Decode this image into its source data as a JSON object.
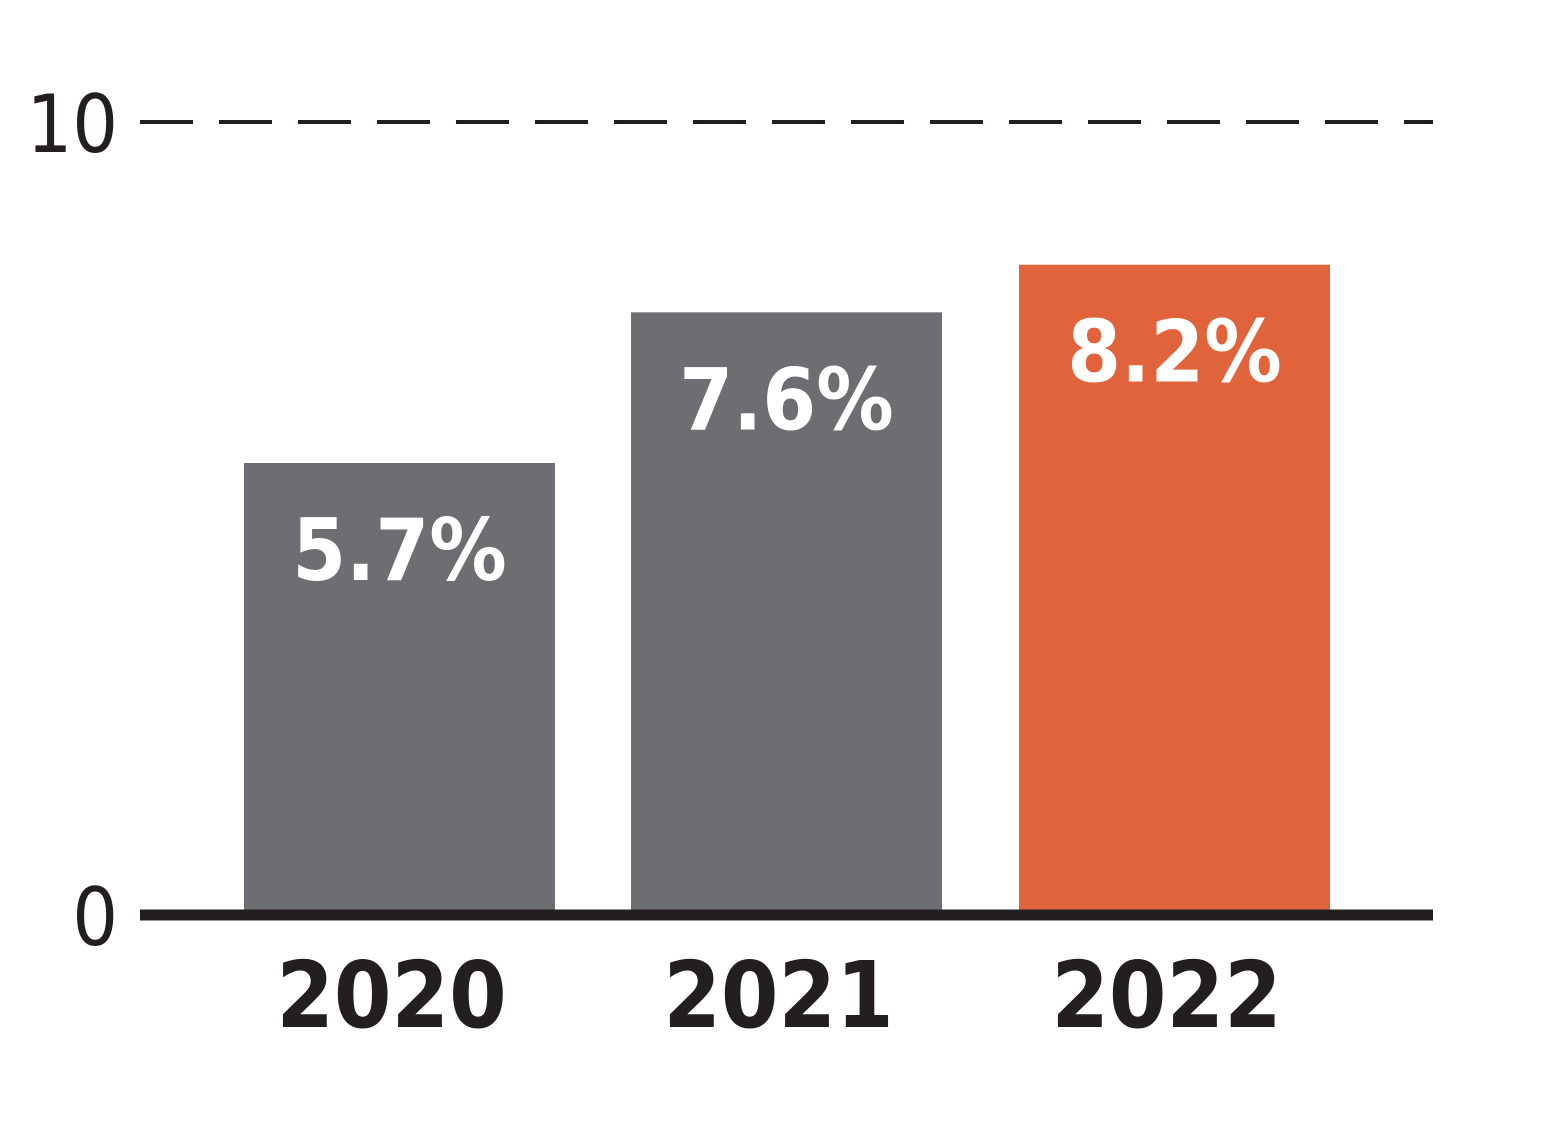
{
  "chart_data": {
    "type": "bar",
    "title": "",
    "xlabel": "",
    "ylabel": "",
    "categories": [
      "2020",
      "2021",
      "2022"
    ],
    "values": [
      5.7,
      7.6,
      8.2
    ],
    "value_labels": [
      "5.7%",
      "7.6%",
      "8.2%"
    ],
    "ylim": [
      0,
      10
    ],
    "y_ticks": [
      "0",
      "10"
    ],
    "gridline_at_max": "dashed",
    "legend": "none",
    "colors": {
      "bar_default": "#6d6e71",
      "bar_highlight": "#e0633c",
      "axis": "#231f20",
      "text": "#231f20",
      "value_text": "#ffffff"
    },
    "highlight_index": 2
  }
}
